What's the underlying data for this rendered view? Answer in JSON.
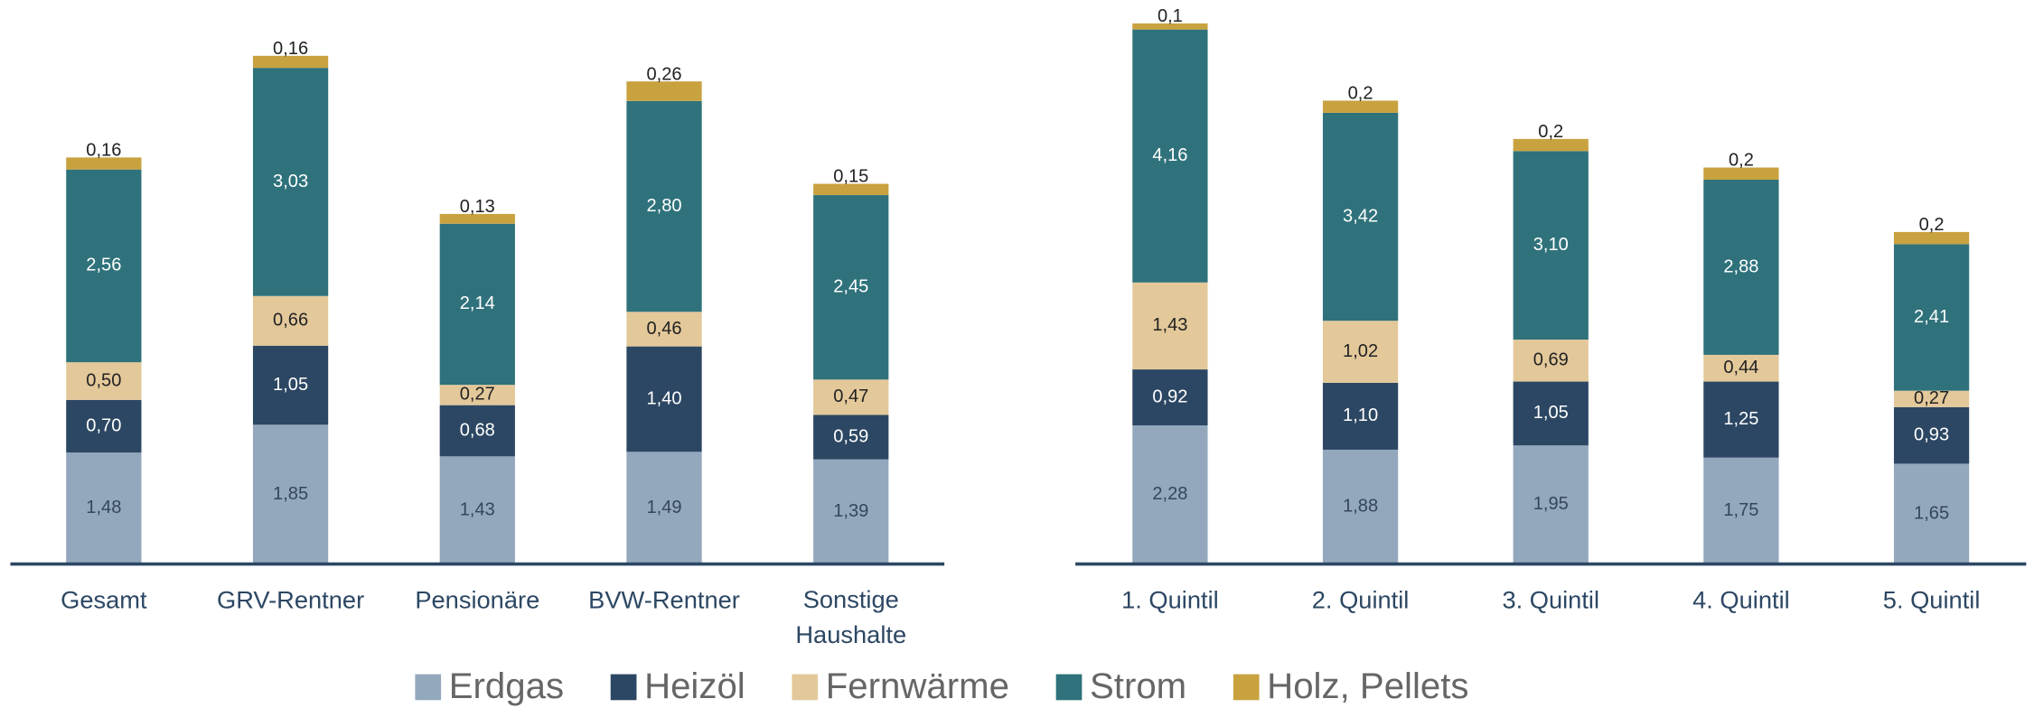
{
  "legend": {
    "names": [
      "Erdgas",
      "Heizöl",
      "Fernwärme",
      "Strom",
      "Holz, Pellets"
    ],
    "colors": [
      "#93a8bd",
      "#2c4763",
      "#e3c89a",
      "#2f727b",
      "#c9a240"
    ]
  },
  "chart_data": [
    {
      "type": "bar",
      "categories": [
        "Gesamt",
        "GRV-Rentner",
        "Pensionäre",
        "BVW-Rentner",
        "Sonstige Haushalte"
      ],
      "series": [
        {
          "values": [
            1.48,
            1.85,
            1.43,
            1.49,
            1.39
          ],
          "value_labels": [
            "1,48",
            "1,85",
            "1,43",
            "1,49",
            "1,39"
          ]
        },
        {
          "values": [
            0.7,
            1.05,
            0.68,
            1.4,
            0.59
          ],
          "value_labels": [
            "0,70",
            "1,05",
            "0,68",
            "1,40",
            "0,59"
          ]
        },
        {
          "values": [
            0.5,
            0.66,
            0.27,
            0.46,
            0.47
          ],
          "value_labels": [
            "0,50",
            "0,66",
            "0,27",
            "0,46",
            "0,47"
          ]
        },
        {
          "values": [
            2.56,
            3.03,
            2.14,
            2.8,
            2.45
          ],
          "value_labels": [
            "2,56",
            "3,03",
            "2,14",
            "2,80",
            "2,45"
          ]
        },
        {
          "values": [
            0.16,
            0.16,
            0.13,
            0.26,
            0.15
          ],
          "value_labels": [
            "0,16",
            "0,16",
            "0,13",
            "0,26",
            "0,15"
          ]
        }
      ]
    },
    {
      "type": "bar",
      "categories": [
        "1. Quintil",
        "2. Quintil",
        "3. Quintil",
        "4. Quintil",
        "5. Quintil"
      ],
      "series": [
        {
          "values": [
            2.28,
            1.88,
            1.95,
            1.75,
            1.65
          ],
          "value_labels": [
            "2,28",
            "1,88",
            "1,95",
            "1,75",
            "1,65"
          ]
        },
        {
          "values": [
            0.92,
            1.1,
            1.05,
            1.25,
            0.93
          ],
          "value_labels": [
            "0,92",
            "1,10",
            "1,05",
            "1,25",
            "0,93"
          ]
        },
        {
          "values": [
            1.43,
            1.02,
            0.69,
            0.44,
            0.27
          ],
          "value_labels": [
            "1,43",
            "1,02",
            "0,69",
            "0,44",
            "0,27"
          ]
        },
        {
          "values": [
            4.16,
            3.42,
            3.1,
            2.88,
            2.41
          ],
          "value_labels": [
            "4,16",
            "3,42",
            "3,10",
            "2,88",
            "2,41"
          ]
        },
        {
          "values": [
            0.1,
            0.2,
            0.2,
            0.2,
            0.2
          ],
          "value_labels": [
            "0,1",
            "0,2",
            "0,2",
            "0,2",
            "0,2"
          ]
        }
      ]
    }
  ]
}
